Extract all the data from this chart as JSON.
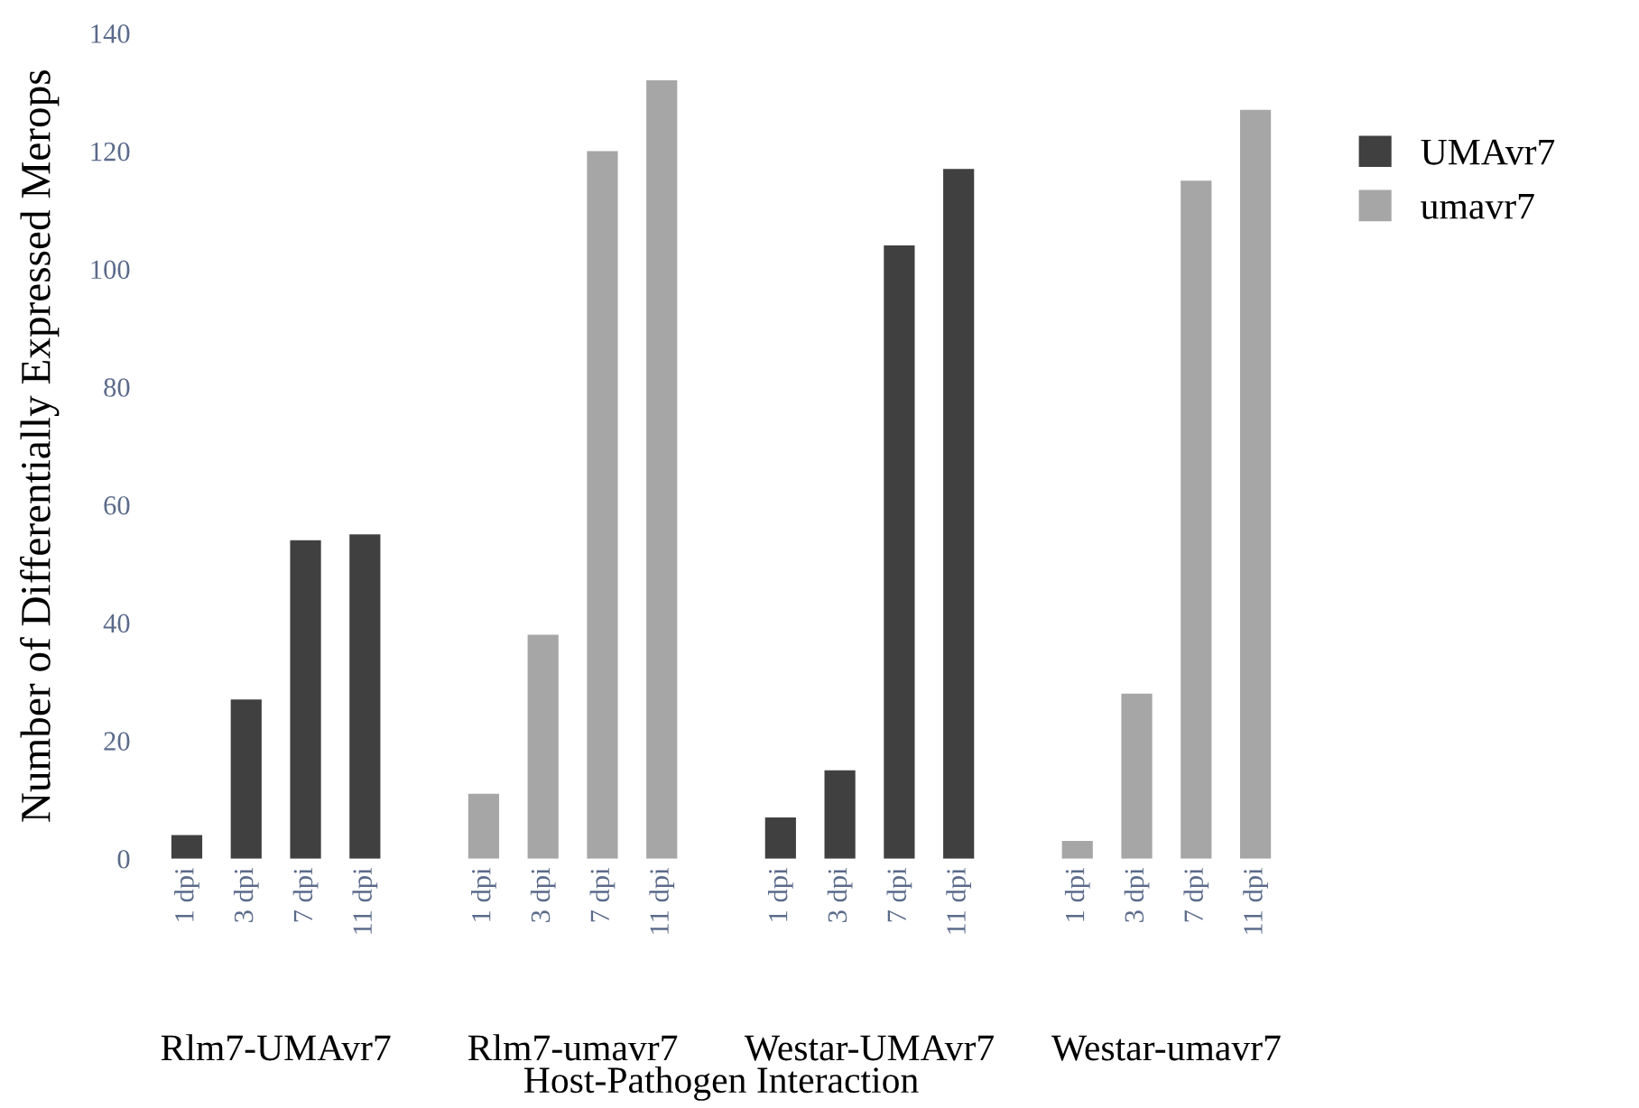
{
  "chart_data": {
    "type": "bar",
    "xlabel": "Host-Pathogen Interaction",
    "ylabel": "Number of Differentially Expressed Merops",
    "categories": [
      "1 dpi",
      "3 dpi",
      "7 dpi",
      "11 dpi",
      "1 dpi",
      "3 dpi",
      "7 dpi",
      "11 dpi",
      "1 dpi",
      "3 dpi",
      "7 dpi",
      "11 dpi",
      "1 dpi",
      "3 dpi",
      "7 dpi",
      "11 dpi"
    ],
    "series": [
      {
        "name": "UMAvr7",
        "color": "#404040",
        "values": [
          4,
          27,
          54,
          55,
          null,
          null,
          null,
          null,
          7,
          15,
          104,
          117,
          null,
          null,
          null,
          null
        ]
      },
      {
        "name": "umavr7",
        "color": "#a6a6a6",
        "values": [
          null,
          null,
          null,
          null,
          11,
          38,
          120,
          132,
          null,
          null,
          null,
          null,
          3,
          28,
          115,
          127
        ]
      }
    ],
    "annotations": [
      "Rlm7-UMAvr7",
      "Rlm7-umavr7",
      "Westar-UMAvr7",
      "Westar-umavr7"
    ],
    "ylim": [
      0,
      140
    ],
    "yticks": [
      0,
      20,
      40,
      60,
      80,
      100,
      120,
      140
    ],
    "grid": false,
    "legend": "right"
  }
}
